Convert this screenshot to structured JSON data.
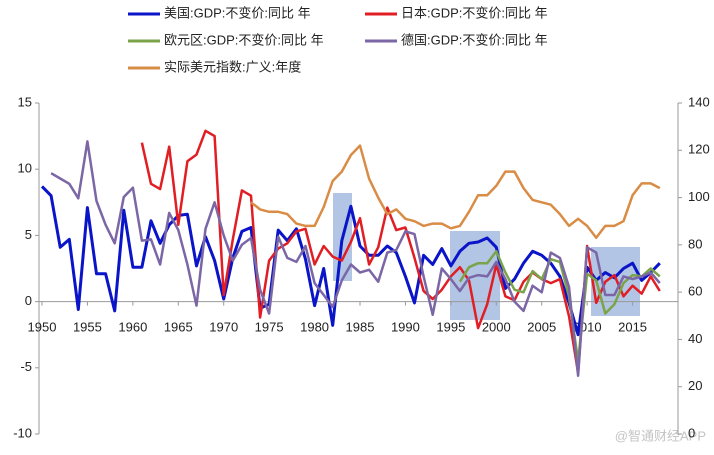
{
  "chart_data": {
    "type": "line",
    "x": [
      1950,
      1951,
      1952,
      1953,
      1954,
      1955,
      1956,
      1957,
      1958,
      1959,
      1960,
      1961,
      1962,
      1963,
      1964,
      1965,
      1966,
      1967,
      1968,
      1969,
      1970,
      1971,
      1972,
      1973,
      1974,
      1975,
      1976,
      1977,
      1978,
      1979,
      1980,
      1981,
      1982,
      1983,
      1984,
      1985,
      1986,
      1987,
      1988,
      1989,
      1990,
      1991,
      1992,
      1993,
      1994,
      1995,
      1996,
      1997,
      1998,
      1999,
      2000,
      2001,
      2002,
      2003,
      2004,
      2005,
      2006,
      2007,
      2008,
      2009,
      2010,
      2011,
      2012,
      2013,
      2014,
      2015,
      2016,
      2017,
      2018
    ],
    "series": [
      {
        "name": "美国:GDP:不变价:同比 年",
        "color": "#0a14c8",
        "values": [
          8.7,
          8.0,
          4.1,
          4.7,
          -0.6,
          7.1,
          2.1,
          2.1,
          -0.7,
          6.9,
          2.6,
          2.6,
          6.1,
          4.4,
          5.8,
          6.5,
          6.6,
          2.7,
          4.9,
          3.1,
          0.2,
          3.3,
          5.3,
          5.6,
          -0.5,
          -0.2,
          5.4,
          4.6,
          5.5,
          3.2,
          -0.3,
          2.5,
          -1.8,
          4.6,
          7.2,
          4.2,
          3.5,
          3.5,
          4.2,
          3.7,
          1.9,
          -0.1,
          3.5,
          2.8,
          4.0,
          2.7,
          3.8,
          4.4,
          4.5,
          4.8,
          4.1,
          1.0,
          1.7,
          2.9,
          3.8,
          3.5,
          2.9,
          1.9,
          -0.1,
          -2.5,
          2.6,
          1.6,
          2.2,
          1.8,
          2.5,
          2.9,
          1.6,
          2.2,
          2.9
        ]
      },
      {
        "name": "日本:GDP:不变价:同比 年",
        "color": "#e01e24",
        "values": [
          null,
          null,
          null,
          null,
          null,
          null,
          null,
          null,
          null,
          null,
          null,
          12.0,
          8.9,
          8.5,
          11.7,
          5.8,
          10.6,
          11.1,
          12.9,
          12.5,
          0.5,
          4.7,
          8.4,
          8.0,
          -1.2,
          3.1,
          4.0,
          4.4,
          5.3,
          5.5,
          2.8,
          4.2,
          3.4,
          3.1,
          4.5,
          6.3,
          2.8,
          4.1,
          7.1,
          5.4,
          5.6,
          3.3,
          0.8,
          0.2,
          0.9,
          1.9,
          2.6,
          1.6,
          -2.0,
          -0.2,
          2.8,
          0.4,
          0.1,
          1.5,
          2.2,
          1.7,
          1.4,
          1.7,
          -1.1,
          -5.4,
          4.2,
          -0.1,
          1.5,
          2.0,
          0.4,
          1.2,
          0.6,
          1.9,
          0.8
        ]
      },
      {
        "name": "欧元区:GDP:不变价:同比 年",
        "color": "#7aa34a",
        "values": [
          null,
          null,
          null,
          null,
          null,
          null,
          null,
          null,
          null,
          null,
          null,
          null,
          null,
          null,
          null,
          null,
          null,
          null,
          null,
          null,
          null,
          null,
          null,
          null,
          null,
          null,
          null,
          null,
          null,
          null,
          null,
          null,
          null,
          null,
          null,
          null,
          null,
          null,
          null,
          null,
          null,
          null,
          null,
          null,
          null,
          null,
          1.5,
          2.6,
          2.9,
          2.9,
          3.8,
          2.2,
          0.9,
          0.7,
          2.3,
          1.7,
          3.2,
          3.0,
          0.4,
          -4.5,
          2.1,
          1.6,
          -0.9,
          -0.2,
          1.4,
          2.0,
          1.9,
          2.5,
          1.9
        ]
      },
      {
        "name": "德国:GDP:不变价:同比 年",
        "color": "#7b66a6",
        "values": [
          null,
          9.7,
          9.3,
          8.9,
          7.8,
          12.1,
          7.6,
          5.8,
          4.4,
          7.9,
          8.6,
          4.6,
          4.7,
          2.8,
          6.7,
          5.4,
          2.8,
          -0.3,
          5.5,
          7.5,
          5.0,
          3.1,
          4.3,
          4.8,
          0.9,
          -0.9,
          4.9,
          3.3,
          3.0,
          4.2,
          1.4,
          0.5,
          -0.4,
          1.6,
          2.8,
          2.2,
          2.4,
          1.5,
          3.7,
          3.9,
          5.3,
          5.1,
          1.9,
          -1.0,
          2.5,
          1.7,
          0.8,
          1.8,
          2.0,
          1.9,
          3.0,
          1.7,
          0.0,
          -0.7,
          1.2,
          0.7,
          3.7,
          3.3,
          1.1,
          -5.6,
          4.1,
          3.7,
          0.5,
          0.5,
          1.9,
          1.7,
          1.9,
          2.2,
          1.4
        ]
      },
      {
        "name": "实际美元指数:广义:年度",
        "color": "#d98c46",
        "axis": "y2",
        "values": [
          null,
          null,
          null,
          null,
          null,
          null,
          null,
          null,
          null,
          null,
          null,
          null,
          null,
          null,
          null,
          null,
          null,
          null,
          null,
          null,
          null,
          null,
          null,
          98,
          95,
          94,
          94,
          93,
          89,
          88,
          88,
          96,
          107,
          111,
          118,
          122,
          108,
          100,
          93,
          95,
          91,
          90,
          88,
          89,
          89,
          87,
          88,
          94,
          101,
          101,
          105,
          111,
          111,
          104,
          99,
          98,
          97,
          93,
          88,
          91,
          88,
          83,
          88,
          88,
          90,
          101,
          106,
          106,
          104
        ]
      }
    ],
    "xlim": [
      1950,
      2020
    ],
    "xticks": [
      1950,
      1955,
      1960,
      1965,
      1970,
      1975,
      1980,
      1985,
      1990,
      1995,
      2000,
      2005,
      2010,
      2015
    ],
    "ylim": [
      -10,
      15
    ],
    "yticks": [
      -10,
      -5,
      0,
      5,
      10,
      15
    ],
    "y2lim": [
      0,
      140
    ],
    "y2ticks": [
      0,
      20,
      40,
      60,
      80,
      100,
      120,
      140
    ],
    "watermark": "@智通财经APP"
  }
}
